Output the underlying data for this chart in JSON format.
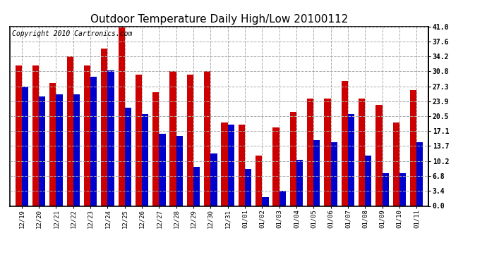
{
  "title": "Outdoor Temperature Daily High/Low 20100112",
  "copyright": "Copyright 2010 Cartronics.com",
  "dates": [
    "12/19",
    "12/20",
    "12/21",
    "12/22",
    "12/23",
    "12/24",
    "12/25",
    "12/26",
    "12/27",
    "12/28",
    "12/29",
    "12/30",
    "12/31",
    "01/01",
    "01/02",
    "01/03",
    "01/04",
    "01/05",
    "01/06",
    "01/07",
    "01/08",
    "01/09",
    "01/10",
    "01/11"
  ],
  "highs": [
    32.0,
    32.0,
    28.0,
    34.2,
    32.0,
    36.0,
    41.0,
    30.0,
    26.0,
    30.8,
    30.0,
    30.8,
    19.0,
    18.5,
    11.5,
    18.0,
    21.5,
    24.5,
    24.5,
    28.5,
    24.5,
    23.0,
    19.0,
    26.5
  ],
  "lows": [
    27.3,
    25.0,
    25.5,
    25.5,
    29.5,
    31.0,
    22.5,
    21.0,
    16.5,
    16.0,
    9.0,
    12.0,
    18.5,
    8.5,
    2.0,
    3.4,
    10.5,
    15.0,
    14.5,
    21.0,
    11.5,
    7.5,
    7.5,
    14.5
  ],
  "high_color": "#cc0000",
  "low_color": "#0000cc",
  "bg_color": "#ffffff",
  "yticks": [
    0.0,
    3.4,
    6.8,
    10.2,
    13.7,
    17.1,
    20.5,
    23.9,
    27.3,
    30.8,
    34.2,
    37.6,
    41.0
  ],
  "ylim": [
    0,
    41.0
  ],
  "title_fontsize": 11,
  "copyright_fontsize": 7,
  "bar_width": 0.38
}
